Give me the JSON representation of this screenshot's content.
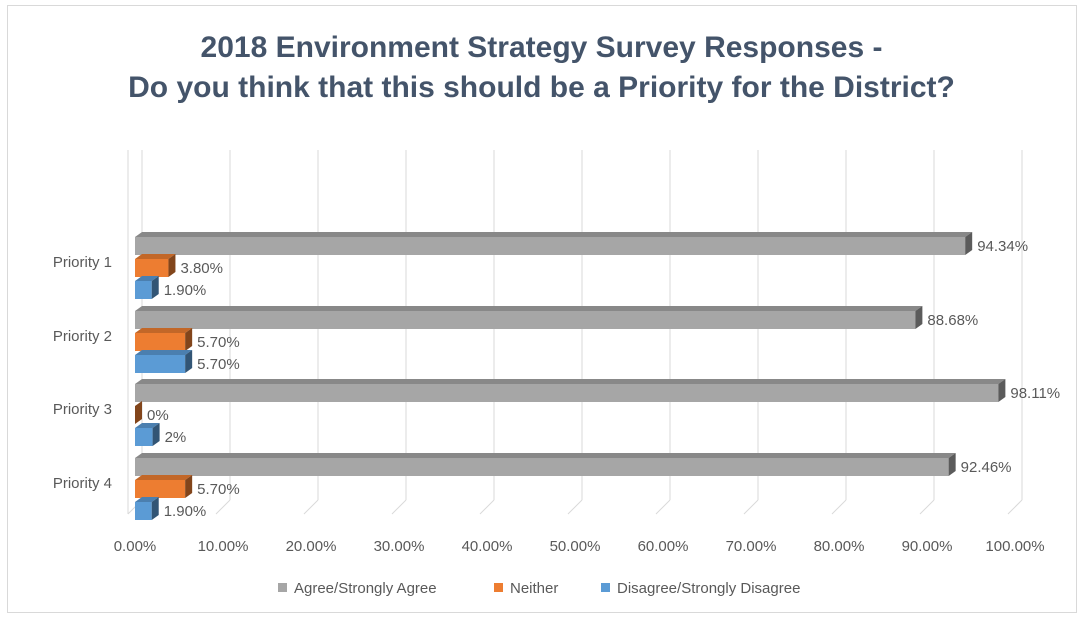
{
  "chart_data": {
    "type": "bar",
    "orientation": "horizontal",
    "title_lines": [
      "2018 Environment Strategy Survey Responses -",
      "Do you think that this should be a Priority for the District?"
    ],
    "categories": [
      "Priority 1",
      "Priority 2",
      "Priority 3",
      "Priority 4"
    ],
    "series": [
      {
        "name": "Agree/Strongly Agree",
        "color": "#a6a6a6",
        "values": [
          94.34,
          88.68,
          98.11,
          92.46
        ],
        "labels": [
          "94.34%",
          "88.68%",
          "98.11%",
          "92.46%"
        ]
      },
      {
        "name": "Neither",
        "color": "#ed7d31",
        "values": [
          3.8,
          5.7,
          0,
          5.7
        ],
        "labels": [
          "3.80%",
          "5.70%",
          "0%",
          "5.70%"
        ]
      },
      {
        "name": "Disagree/Strongly Disagree",
        "color": "#5b9bd5",
        "values": [
          1.9,
          5.7,
          2,
          1.9
        ],
        "labels": [
          "1.90%",
          "5.70%",
          "2%",
          "1.90%"
        ]
      }
    ],
    "xlim": [
      0,
      100
    ],
    "xticks": [
      "0.00%",
      "10.00%",
      "20.00%",
      "30.00%",
      "40.00%",
      "50.00%",
      "60.00%",
      "70.00%",
      "80.00%",
      "90.00%",
      "100.00%"
    ],
    "grid": true,
    "legend_position": "bottom",
    "style": "3d-clustered-bar"
  }
}
